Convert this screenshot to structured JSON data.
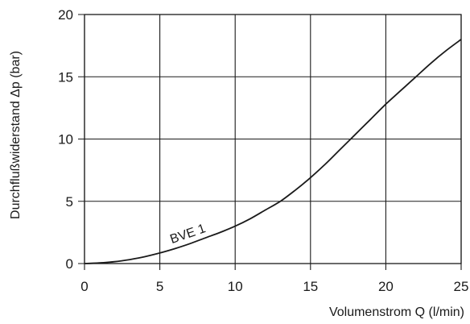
{
  "chart_data": {
    "type": "line",
    "xlabel": "Volumenstrom Q (l/min)",
    "ylabel": "Durchflußwiderstand Δp (bar)",
    "xlim": [
      0,
      25
    ],
    "ylim": [
      0,
      20
    ],
    "x_ticks": [
      "0",
      "5",
      "10",
      "15",
      "20",
      "25"
    ],
    "y_ticks": [
      "0",
      "5",
      "10",
      "15",
      "20"
    ],
    "grid": true,
    "series": [
      {
        "name": "BVE  1",
        "x": [
          0,
          1,
          2,
          3,
          4,
          5,
          6,
          7,
          8,
          9,
          10,
          11,
          12,
          13,
          14,
          15,
          16,
          17,
          18,
          19,
          20,
          21,
          22,
          23,
          24,
          25
        ],
        "y": [
          0,
          0.05,
          0.15,
          0.32,
          0.55,
          0.85,
          1.2,
          1.6,
          2.05,
          2.5,
          3.0,
          3.6,
          4.3,
          5.0,
          5.9,
          6.9,
          8.0,
          9.2,
          10.4,
          11.6,
          12.8,
          13.9,
          15.0,
          16.1,
          17.1,
          18.0
        ]
      }
    ],
    "annotations": [
      {
        "text": "BVE  1",
        "x": 5.8,
        "y": 1.6
      }
    ]
  }
}
